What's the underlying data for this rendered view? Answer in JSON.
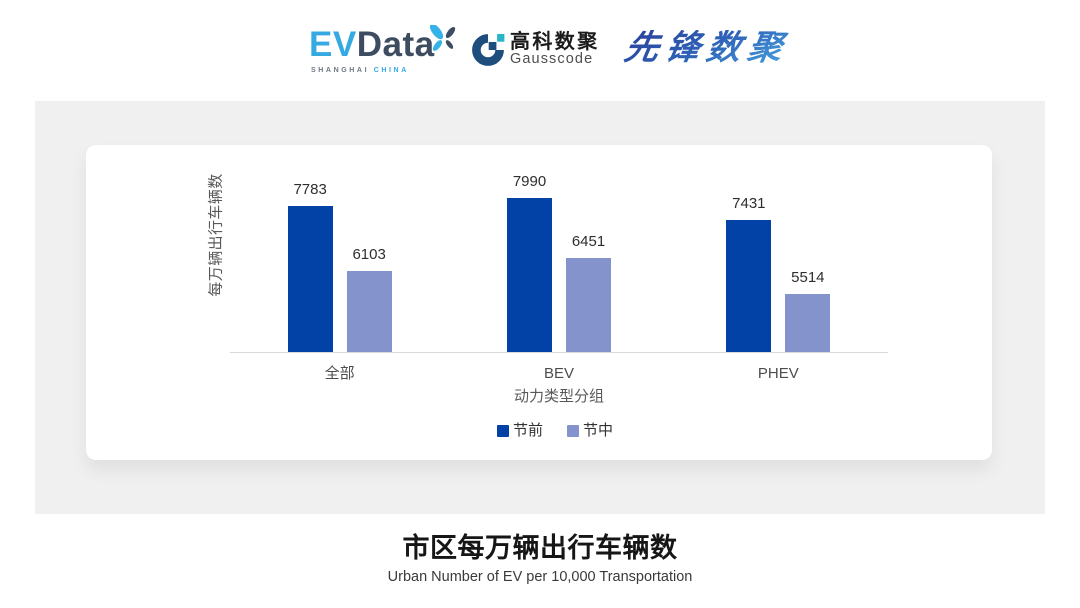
{
  "header": {
    "evdata": {
      "ev": "EV",
      "data": "Data",
      "sub_left": "SHANGHAI",
      "sub_right": "CHINA"
    },
    "gausscode": {
      "cn": "高科数聚",
      "en": "Gausscode"
    },
    "pioneer": {
      "text": "先锋数聚"
    }
  },
  "chart_data": {
    "type": "bar",
    "categories": [
      "全部",
      "BEV",
      "PHEV"
    ],
    "series": [
      {
        "name": "节前",
        "color": "#0241a6",
        "values": [
          7783,
          7990,
          7431
        ]
      },
      {
        "name": "节中",
        "color": "#8593cd",
        "values": [
          6103,
          6451,
          5514
        ]
      }
    ],
    "xlabel": "动力类型分组",
    "ylabel": "每万辆出行车辆数",
    "ylim": [
      4000,
      8200
    ],
    "grid": false,
    "legend_position": "bottom",
    "value_labels": true
  },
  "footer": {
    "title": "市区每万辆出行车辆数",
    "subtitle": "Urban Number of EV per 10,000 Transportation"
  },
  "colors": {
    "panel_bg": "#f0f0f1",
    "card_bg": "#ffffff",
    "axis_line": "#d9d9d9"
  }
}
